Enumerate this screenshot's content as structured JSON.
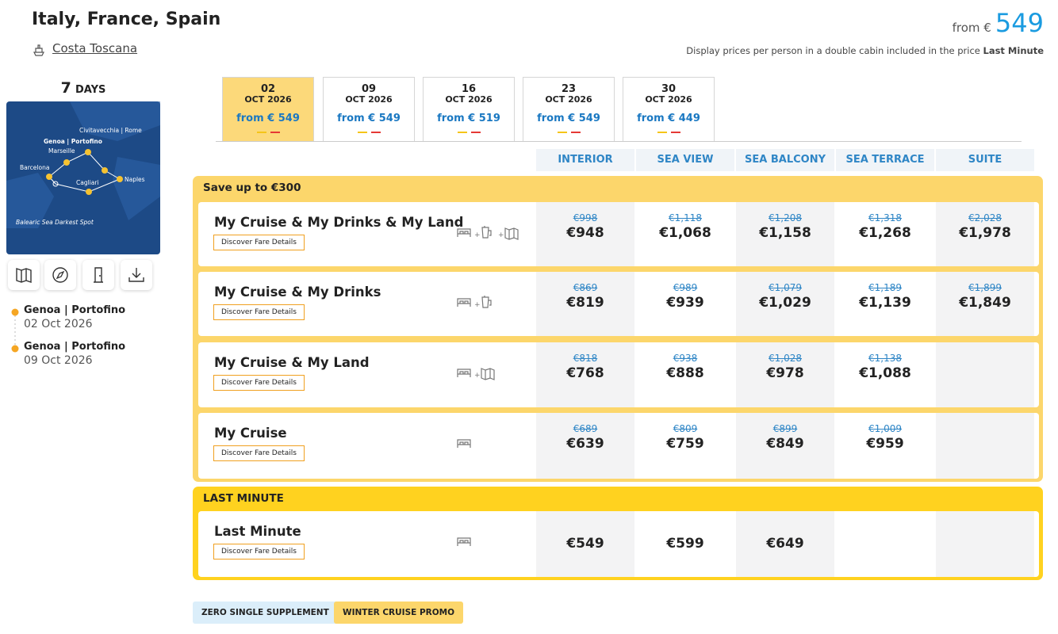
{
  "header": {
    "title": "Italy, France, Spain",
    "ship": "Costa Toscana",
    "from_label": "from €",
    "price": "549",
    "note": "Display prices per person in a double cabin included in the price",
    "note_bold": "Last Minute"
  },
  "sidebar": {
    "days": "7",
    "days_label": "DAYS",
    "map_labels": [
      "Civitavecchia | Rome",
      "Genoa | Portofino",
      "Marseille",
      "Barcelona",
      "Cagliari",
      "Naples",
      "Balearic Sea Darkest Spot"
    ],
    "itinerary": [
      {
        "port": "Genoa | Portofino",
        "date": "02 Oct 2026"
      },
      {
        "port": "Genoa | Portofino",
        "date": "09 Oct 2026"
      }
    ]
  },
  "date_tabs": [
    {
      "day": "02",
      "month": "OCT 2026",
      "price": "from € 549"
    },
    {
      "day": "09",
      "month": "OCT 2026",
      "price": "from € 549"
    },
    {
      "day": "16",
      "month": "OCT 2026",
      "price": "from € 519"
    },
    {
      "day": "23",
      "month": "OCT 2026",
      "price": "from € 549"
    },
    {
      "day": "30",
      "month": "OCT 2026",
      "price": "from € 449"
    }
  ],
  "table": {
    "columns": [
      "INTERIOR",
      "SEA VIEW",
      "SEA BALCONY",
      "SEA TERRACE",
      "SUITE"
    ],
    "groups": [
      {
        "title": "Save up to €300",
        "rows": [
          {
            "name": "My Cruise & My Drinks & My Land",
            "button": "Discover Fare Details",
            "old": [
              "€998",
              "€1,118",
              "€1,208",
              "€1,318",
              "€2,028"
            ],
            "new": [
              "€948",
              "€1,068",
              "€1,158",
              "€1,268",
              "€1,978"
            ]
          },
          {
            "name": "My Cruise & My Drinks",
            "button": "Discover Fare Details",
            "old": [
              "€869",
              "€989",
              "€1,079",
              "€1,189",
              "€1,899"
            ],
            "new": [
              "€819",
              "€939",
              "€1,029",
              "€1,139",
              "€1,849"
            ]
          },
          {
            "name": "My Cruise & My Land",
            "button": "Discover Fare Details",
            "old": [
              "€818",
              "€938",
              "€1,028",
              "€1,138"
            ],
            "new": [
              "€768",
              "€888",
              "€978",
              "€1,088"
            ]
          },
          {
            "name": "My Cruise",
            "button": "Discover Fare Details",
            "old": [
              "€689",
              "€809",
              "€899",
              "€1,009"
            ],
            "new": [
              "€639",
              "€759",
              "€849",
              "€959"
            ]
          }
        ]
      },
      {
        "title": "LAST MINUTE",
        "rows": [
          {
            "name": "Last Minute",
            "button": "Discover Fare Details",
            "new": [
              "€549",
              "€599",
              "€649"
            ]
          }
        ]
      }
    ]
  },
  "badges": [
    "ZERO SINGLE SUPPLEMENT",
    "WINTER CRUISE PROMO"
  ]
}
